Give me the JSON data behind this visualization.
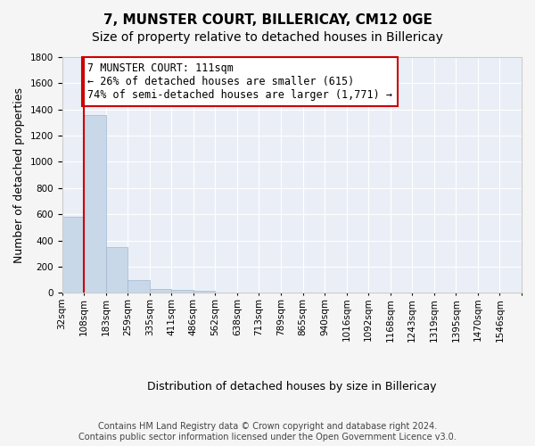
{
  "title": "7, MUNSTER COURT, BILLERICAY, CM12 0GE",
  "subtitle": "Size of property relative to detached houses in Billericay",
  "xlabel": "Distribution of detached houses by size in Billericay",
  "ylabel": "Number of detached properties",
  "bin_labels": [
    "32sqm",
    "108sqm",
    "183sqm",
    "259sqm",
    "335sqm",
    "411sqm",
    "486sqm",
    "562sqm",
    "638sqm",
    "713sqm",
    "789sqm",
    "865sqm",
    "940sqm",
    "1016sqm",
    "1092sqm",
    "1168sqm",
    "1243sqm",
    "1319sqm",
    "1395sqm",
    "1470sqm",
    "1546sqm"
  ],
  "bar_heights": [
    580,
    1360,
    350,
    95,
    30,
    20,
    15,
    0,
    0,
    0,
    0,
    0,
    0,
    0,
    0,
    0,
    0,
    0,
    0,
    0,
    0
  ],
  "bar_color": "#c8d8e8",
  "bar_edge_color": "#a0b8d0",
  "annotation_line1": "7 MUNSTER COURT: 111sqm",
  "annotation_line2": "← 26% of detached houses are smaller (615)",
  "annotation_line3": "74% of semi-detached houses are larger (1,771) →",
  "annotation_box_color": "#ffffff",
  "annotation_box_edge_color": "#cc0000",
  "vline_x": 1.0,
  "vline_color": "#cc0000",
  "ylim": [
    0,
    1800
  ],
  "yticks": [
    0,
    200,
    400,
    600,
    800,
    1000,
    1200,
    1400,
    1600,
    1800
  ],
  "background_color": "#eaeff7",
  "footnote": "Contains HM Land Registry data © Crown copyright and database right 2024.\nContains public sector information licensed under the Open Government Licence v3.0.",
  "title_fontsize": 11,
  "subtitle_fontsize": 10,
  "xlabel_fontsize": 9,
  "ylabel_fontsize": 9,
  "tick_fontsize": 7.5,
  "annotation_fontsize": 8.5,
  "footnote_fontsize": 7
}
